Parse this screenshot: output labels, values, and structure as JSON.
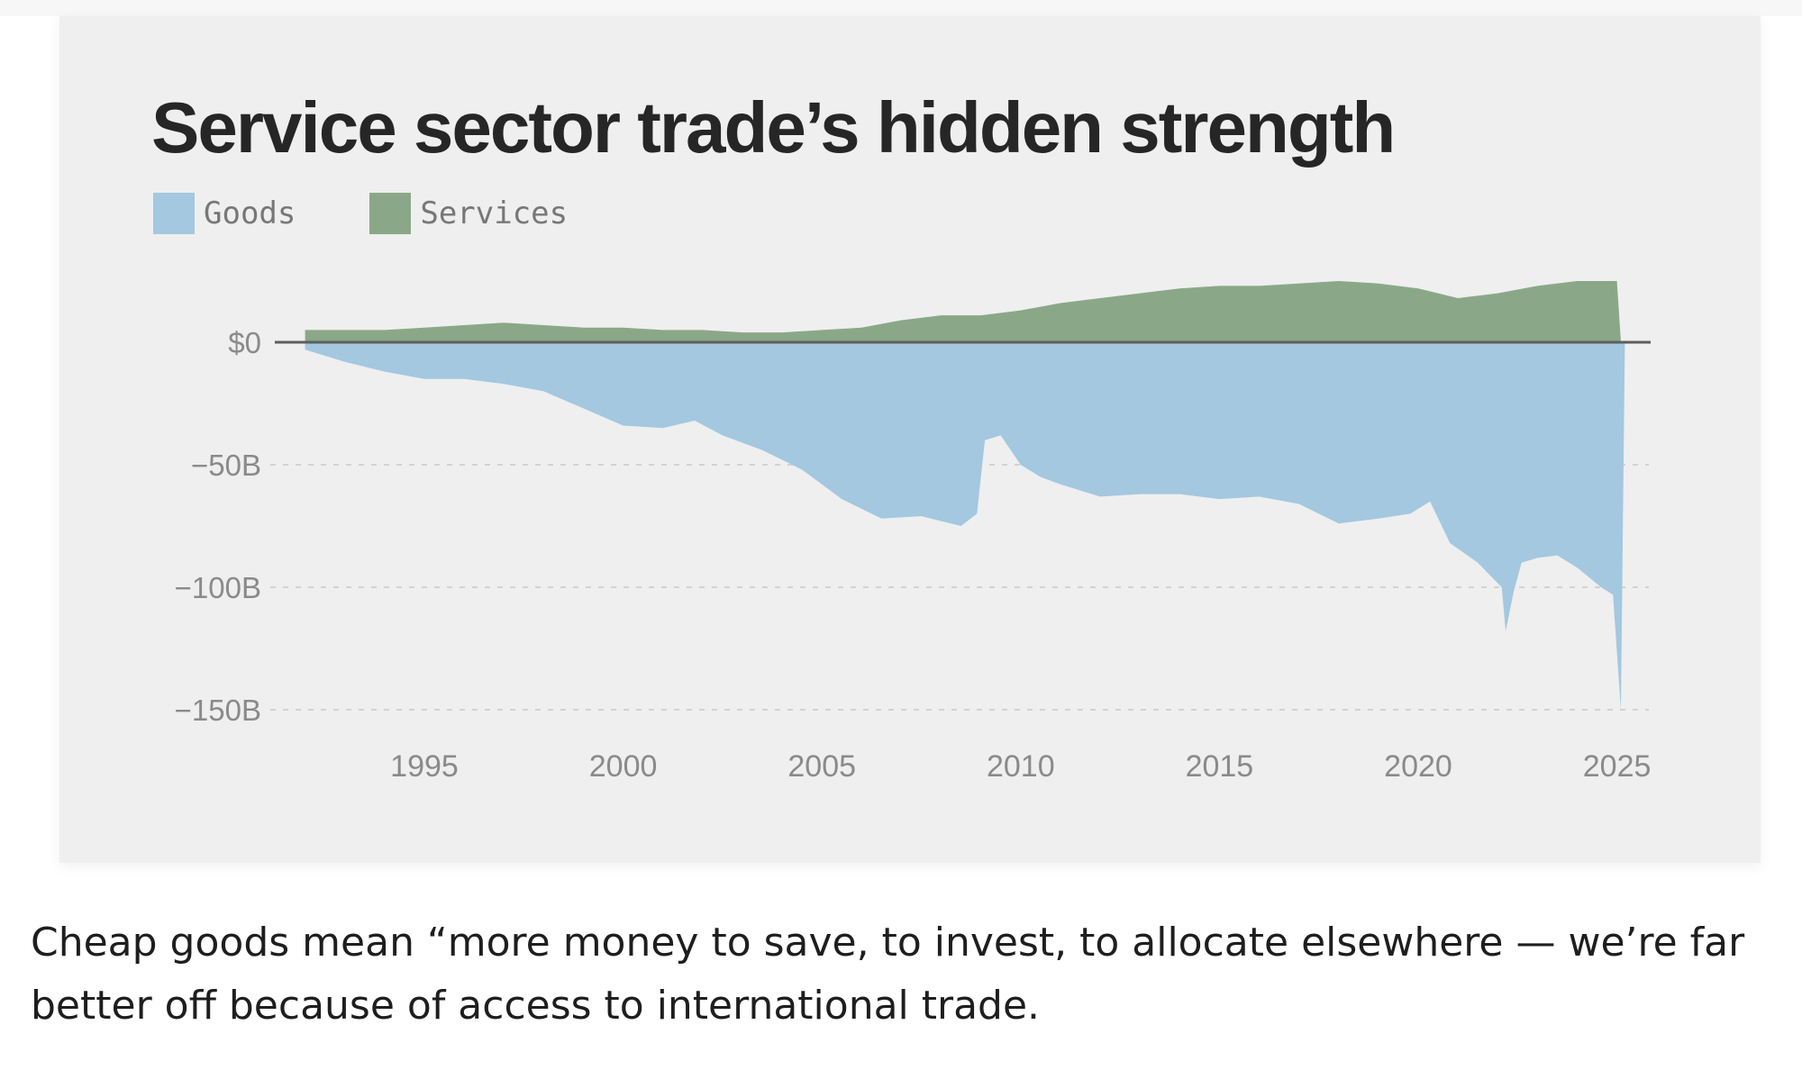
{
  "chart_data": {
    "type": "area",
    "title": "Service sector trade’s hidden strength",
    "xlabel": "",
    "ylabel": "",
    "xlim": [
      1991.5,
      2026
    ],
    "ylim": [
      -150,
      25
    ],
    "x_ticks": [
      1995,
      2000,
      2005,
      2010,
      2015,
      2020,
      2025
    ],
    "y_ticks": [
      {
        "value": 0,
        "label": "$0"
      },
      {
        "value": -50,
        "label": "−50B"
      },
      {
        "value": -100,
        "label": "−100B"
      },
      {
        "value": -150,
        "label": "−150B"
      }
    ],
    "legend": "top-left",
    "series": [
      {
        "name": "Goods",
        "color": "#a3c8df",
        "points": [
          [
            1992.0,
            -3
          ],
          [
            1993.0,
            -8
          ],
          [
            1994.0,
            -12
          ],
          [
            1995.0,
            -15
          ],
          [
            1996.0,
            -15
          ],
          [
            1997.0,
            -17
          ],
          [
            1998.0,
            -20
          ],
          [
            1999.0,
            -27
          ],
          [
            2000.0,
            -34
          ],
          [
            2001.0,
            -35
          ],
          [
            2001.8,
            -32
          ],
          [
            2002.5,
            -38
          ],
          [
            2003.5,
            -44
          ],
          [
            2004.5,
            -52
          ],
          [
            2005.5,
            -64
          ],
          [
            2006.5,
            -72
          ],
          [
            2007.5,
            -71
          ],
          [
            2008.5,
            -75
          ],
          [
            2008.9,
            -70
          ],
          [
            2009.1,
            -40
          ],
          [
            2009.5,
            -38
          ],
          [
            2010.0,
            -50
          ],
          [
            2010.5,
            -55
          ],
          [
            2011.0,
            -58
          ],
          [
            2012.0,
            -63
          ],
          [
            2013.0,
            -62
          ],
          [
            2014.0,
            -62
          ],
          [
            2015.0,
            -64
          ],
          [
            2016.0,
            -63
          ],
          [
            2017.0,
            -66
          ],
          [
            2018.0,
            -74
          ],
          [
            2019.0,
            -72
          ],
          [
            2019.8,
            -70
          ],
          [
            2020.3,
            -65
          ],
          [
            2020.8,
            -82
          ],
          [
            2021.5,
            -90
          ],
          [
            2022.1,
            -100
          ],
          [
            2022.2,
            -118
          ],
          [
            2022.4,
            -102
          ],
          [
            2022.6,
            -90
          ],
          [
            2023.0,
            -88
          ],
          [
            2023.5,
            -87
          ],
          [
            2024.0,
            -92
          ],
          [
            2024.6,
            -100
          ],
          [
            2024.9,
            -103
          ],
          [
            2025.1,
            -150
          ],
          [
            2025.2,
            0
          ]
        ]
      },
      {
        "name": "Services",
        "color": "#8aa888",
        "points": [
          [
            1992.0,
            5
          ],
          [
            1993.0,
            5
          ],
          [
            1994.0,
            5
          ],
          [
            1995.0,
            6
          ],
          [
            1996.0,
            7
          ],
          [
            1997.0,
            8
          ],
          [
            1998.0,
            7
          ],
          [
            1999.0,
            6
          ],
          [
            2000.0,
            6
          ],
          [
            2001.0,
            5
          ],
          [
            2002.0,
            5
          ],
          [
            2003.0,
            4
          ],
          [
            2004.0,
            4
          ],
          [
            2005.0,
            5
          ],
          [
            2006.0,
            6
          ],
          [
            2007.0,
            9
          ],
          [
            2008.0,
            11
          ],
          [
            2009.0,
            11
          ],
          [
            2010.0,
            13
          ],
          [
            2011.0,
            16
          ],
          [
            2012.0,
            18
          ],
          [
            2013.0,
            20
          ],
          [
            2014.0,
            22
          ],
          [
            2015.0,
            23
          ],
          [
            2016.0,
            23
          ],
          [
            2017.0,
            24
          ],
          [
            2018.0,
            25
          ],
          [
            2019.0,
            24
          ],
          [
            2020.0,
            22
          ],
          [
            2021.0,
            18
          ],
          [
            2022.0,
            20
          ],
          [
            2023.0,
            23
          ],
          [
            2024.0,
            25
          ],
          [
            2025.0,
            25
          ],
          [
            2025.1,
            0
          ]
        ]
      }
    ]
  },
  "caption": "Cheap goods mean “more money to save, to invest, to allocate elsewhere — we’re far better off because of access to international trade."
}
